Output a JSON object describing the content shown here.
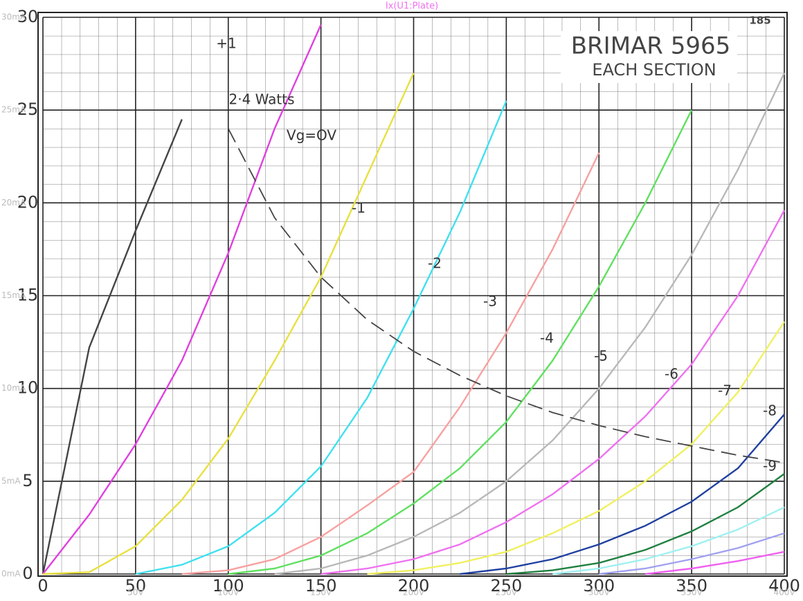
{
  "chart_data": {
    "type": "line",
    "sim_title": "Ix(U1:Plate)",
    "title": "BRIMAR 5965",
    "subtitle": "EACH SECTION",
    "page_number": "185",
    "xlim": [
      0,
      400
    ],
    "ylim": [
      0,
      30
    ],
    "xticks": [
      0,
      50,
      100,
      150,
      200,
      250,
      300,
      350,
      400
    ],
    "yticks": [
      0,
      5,
      10,
      15,
      20,
      25,
      30
    ],
    "sim_xticks": [
      {
        "value": 50,
        "label": "50V"
      },
      {
        "value": 100,
        "label": "100V"
      },
      {
        "value": 150,
        "label": "150V"
      },
      {
        "value": 200,
        "label": "200V"
      },
      {
        "value": 250,
        "label": "250V"
      },
      {
        "value": 300,
        "label": "300V"
      },
      {
        "value": 350,
        "label": "350V"
      },
      {
        "value": 400,
        "label": "400V"
      }
    ],
    "sim_yticks": [
      {
        "value": 0,
        "label": "0mA"
      },
      {
        "value": 5,
        "label": "5mA"
      },
      {
        "value": 10,
        "label": "10mA"
      },
      {
        "value": 15,
        "label": "15mA"
      },
      {
        "value": 20,
        "label": "20mA"
      },
      {
        "value": 25,
        "label": "25mA"
      },
      {
        "value": 30,
        "label": "30mA"
      }
    ],
    "grid": true,
    "x": [
      0,
      25,
      50,
      75,
      100,
      125,
      150,
      175,
      200,
      225,
      250,
      275,
      300,
      325,
      350,
      375,
      400
    ],
    "series": [
      {
        "name": "+1",
        "color": "#444444",
        "values": [
          0,
          12.2,
          18.5,
          24.5,
          null,
          null,
          null,
          null,
          null,
          null,
          null,
          null,
          null,
          null,
          null,
          null,
          null
        ]
      },
      {
        "name": "Vg=OV",
        "color": "#e040e0",
        "values": [
          0,
          3.2,
          7,
          11.5,
          17.3,
          24,
          29.6,
          null,
          null,
          null,
          null,
          null,
          null,
          null,
          null,
          null,
          null
        ]
      },
      {
        "name": "-1",
        "color": "#e8e040",
        "values": [
          0,
          0.1,
          1.5,
          4,
          7.3,
          11.5,
          16,
          21.5,
          27,
          null,
          null,
          null,
          null,
          null,
          null,
          null,
          null
        ]
      },
      {
        "name": "-2",
        "color": "#40e0f0",
        "values": [
          null,
          null,
          0,
          0.5,
          1.5,
          3.3,
          5.8,
          9.5,
          14.3,
          19.5,
          25.5,
          null,
          null,
          null,
          null,
          null,
          null
        ]
      },
      {
        "name": "-3",
        "color": "#f8a0a0",
        "values": [
          null,
          null,
          null,
          0,
          0.2,
          0.8,
          2,
          3.7,
          5.5,
          9,
          13,
          17.5,
          22.7,
          null,
          null,
          null,
          null
        ]
      },
      {
        "name": "-4",
        "color": "#60e060",
        "values": [
          null,
          null,
          null,
          null,
          0,
          0.3,
          1,
          2.2,
          3.8,
          5.7,
          8.2,
          11.5,
          15.5,
          20,
          25,
          null,
          null
        ]
      },
      {
        "name": "-5",
        "color": "#b8b8b8",
        "values": [
          null,
          null,
          null,
          null,
          null,
          0,
          0.3,
          1,
          2,
          3.3,
          5,
          7.2,
          10,
          13.3,
          17.2,
          21.8,
          27
        ]
      },
      {
        "name": "-6",
        "color": "#f070f0",
        "values": [
          null,
          null,
          null,
          null,
          null,
          null,
          0,
          0.3,
          0.8,
          1.6,
          2.8,
          4.3,
          6.2,
          8.5,
          11.3,
          15,
          19.6
        ]
      },
      {
        "name": "-7",
        "color": "#f0f060",
        "values": [
          null,
          null,
          null,
          null,
          null,
          null,
          null,
          0,
          0.2,
          0.6,
          1.2,
          2.2,
          3.4,
          5,
          7,
          9.8,
          13.6
        ]
      },
      {
        "name": "-8",
        "color": "#2040a0",
        "values": [
          null,
          null,
          null,
          null,
          null,
          null,
          null,
          null,
          null,
          0,
          0.3,
          0.8,
          1.6,
          2.6,
          3.9,
          5.7,
          8.6
        ]
      },
      {
        "name": "-9",
        "color": "#208040",
        "values": [
          null,
          null,
          null,
          null,
          null,
          null,
          null,
          null,
          null,
          null,
          0,
          0.2,
          0.6,
          1.3,
          2.3,
          3.6,
          5.4
        ]
      },
      {
        "color": "#a0f0f0",
        "values": [
          null,
          null,
          null,
          null,
          null,
          null,
          null,
          null,
          null,
          null,
          null,
          0,
          0.3,
          0.8,
          1.5,
          2.4,
          3.6
        ]
      },
      {
        "color": "#a0a0f0",
        "values": [
          null,
          null,
          null,
          null,
          null,
          null,
          null,
          null,
          null,
          null,
          null,
          null,
          0,
          0.3,
          0.8,
          1.4,
          2.2
        ]
      },
      {
        "color": "#f060f0",
        "values": [
          null,
          null,
          null,
          null,
          null,
          null,
          null,
          null,
          null,
          null,
          null,
          null,
          null,
          0,
          0.3,
          0.7,
          1.2
        ]
      }
    ],
    "power_curve": {
      "name": "2·4 Watts",
      "color": "#444444",
      "values": [
        null,
        null,
        null,
        null,
        24,
        19.2,
        16,
        13.7,
        12,
        10.7,
        9.6,
        8.7,
        8,
        7.4,
        6.9,
        6.4,
        6
      ]
    }
  }
}
